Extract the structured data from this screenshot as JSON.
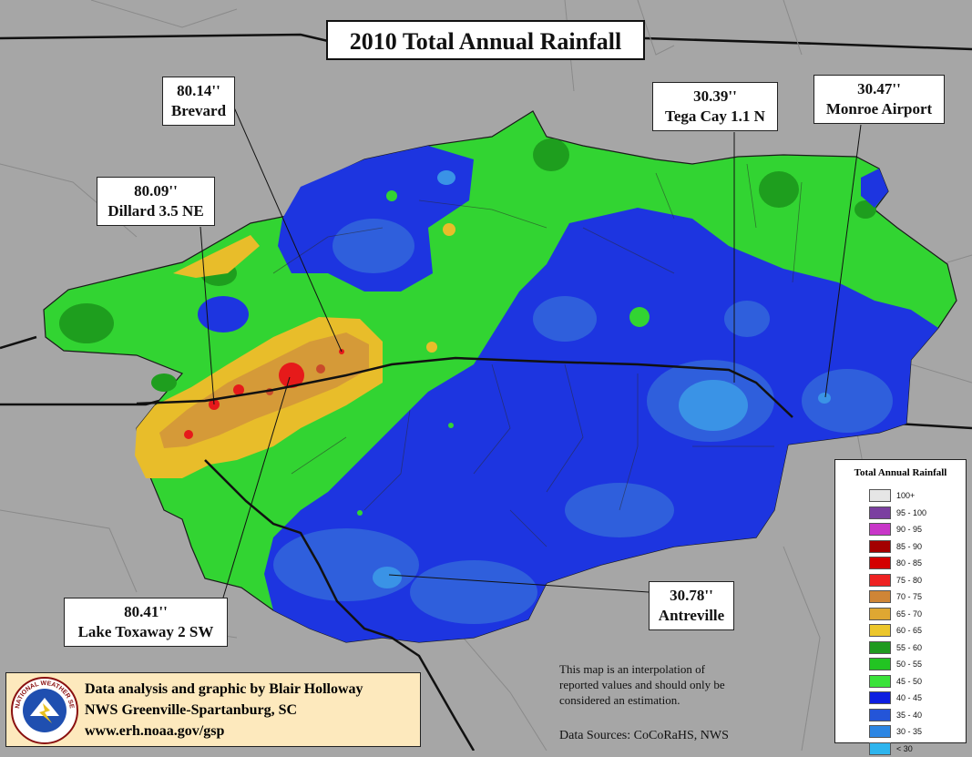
{
  "title": "2010 Total Annual Rainfall",
  "callouts": [
    {
      "value": "80.14''",
      "station": "Brevard"
    },
    {
      "value": "80.09''",
      "station": "Dillard 3.5 NE"
    },
    {
      "value": "30.39''",
      "station": "Tega Cay 1.1 N"
    },
    {
      "value": "30.47''",
      "station": "Monroe Airport"
    },
    {
      "value": "80.41''",
      "station": "Lake Toxaway 2 SW"
    },
    {
      "value": "30.78''",
      "station": "Antreville"
    }
  ],
  "legend": {
    "title": "Total Annual Rainfall",
    "items": [
      {
        "label": "100+",
        "color": "#e6e6e6"
      },
      {
        "label": "95 - 100",
        "color": "#7b3fa0"
      },
      {
        "label": "90 - 95",
        "color": "#c836c8"
      },
      {
        "label": "85 - 90",
        "color": "#a30000"
      },
      {
        "label": "80 - 85",
        "color": "#d40000"
      },
      {
        "label": "75 - 80",
        "color": "#ee2222"
      },
      {
        "label": "70 - 75",
        "color": "#cf8536"
      },
      {
        "label": "65 - 70",
        "color": "#dfa732"
      },
      {
        "label": "60 - 65",
        "color": "#ecc62a"
      },
      {
        "label": "55 - 60",
        "color": "#1f9a1f"
      },
      {
        "label": "50 - 55",
        "color": "#22c422"
      },
      {
        "label": "45 - 50",
        "color": "#3ae23a"
      },
      {
        "label": "40 - 45",
        "color": "#0d1ee0"
      },
      {
        "label": "35 - 40",
        "color": "#2455d8"
      },
      {
        "label": "30 - 35",
        "color": "#2d86e3"
      },
      {
        "label": "< 30",
        "color": "#2eb5ee"
      }
    ]
  },
  "credit": {
    "line1": "Data analysis and graphic by Blair Holloway",
    "line2": "NWS Greenville-Spartanburg, SC",
    "line3": "www.erh.noaa.gov/gsp",
    "seal_text": "NATIONAL WEATHER SERVICE"
  },
  "note": "This map is an interpolation of reported values and should only be considered an estimation.",
  "sources": "Data Sources: CoCoRaHS, NWS"
}
